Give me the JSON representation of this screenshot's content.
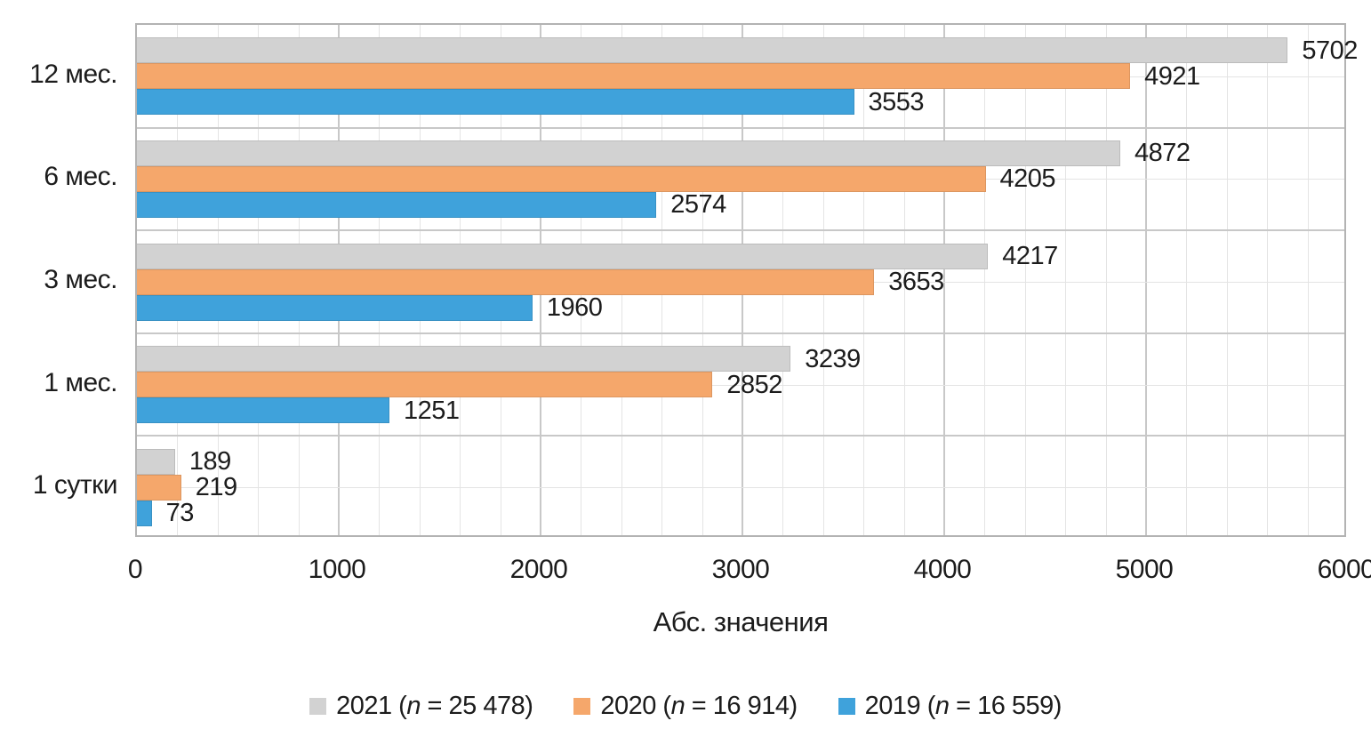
{
  "chart_data": {
    "type": "bar",
    "orientation": "horizontal",
    "xlabel": "Абс. значения",
    "xlim": [
      0,
      6000
    ],
    "x_major_tick_step": 1000,
    "x_minor_tick_step": 200,
    "x_tick_labels": [
      "0",
      "1000",
      "2000",
      "3000",
      "4000",
      "5000",
      "6000"
    ],
    "grid": true,
    "legend_position": "bottom",
    "categories": [
      "12 мес.",
      "6 мес.",
      "3 мес.",
      "1 мес.",
      "1 сутки"
    ],
    "series": [
      {
        "name": "2021",
        "n": "25 478",
        "legend_label": "2021 (n = 25 478)",
        "color": "#d2d2d2",
        "values": [
          5702,
          4872,
          4217,
          3239,
          189
        ]
      },
      {
        "name": "2020",
        "n": "16 914",
        "legend_label": "2020 (n = 16 914)",
        "color": "#f5a76b",
        "values": [
          4921,
          4205,
          3653,
          2852,
          219
        ]
      },
      {
        "name": "2019",
        "n": "16 559",
        "legend_label": "2019 (n = 16 559)",
        "color": "#3fa2db",
        "values": [
          3553,
          2574,
          1960,
          1251,
          73
        ]
      }
    ]
  },
  "colors": {
    "grid_minor": "#e4e4e4",
    "grid_major": "#c8c8c8",
    "plot_border": "#b3b3b3",
    "text": "#1c1c1c",
    "background": "#ffffff"
  }
}
